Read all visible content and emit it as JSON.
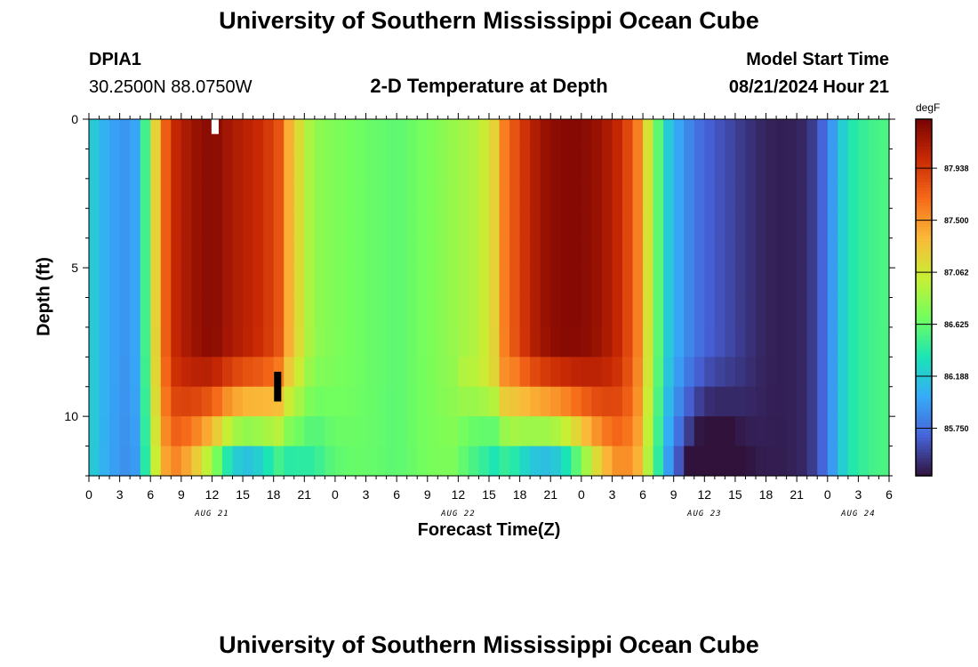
{
  "header": {
    "title": "University of Southern Mississippi Ocean Cube",
    "station": "DPIA1",
    "coords": "30.2500N  88.0750W",
    "subtitle": "2-D Temperature at Depth",
    "model_start_label": "Model Start Time",
    "model_start_value": "08/21/2024 Hour 21"
  },
  "footer": {
    "title": "University of Southern Mississippi Ocean Cube"
  },
  "colors": {
    "cmap": [
      "#30123b",
      "#4662d7",
      "#36aaf9",
      "#1ae4b6",
      "#72fe5e",
      "#c8ef34",
      "#faba39",
      "#f66b19",
      "#ca2a04",
      "#7a0403"
    ],
    "markers": {
      "white": "#ffffff",
      "black": "#000000"
    }
  },
  "chart_data": {
    "type": "heatmap",
    "title": "2-D Temperature at Depth",
    "xlabel": "Forecast Time(Z)",
    "ylabel": "Depth (ft)",
    "units": "degF",
    "x_hours": [
      0,
      78
    ],
    "y_depth_range": [
      0,
      12
    ],
    "y_ticks": [
      "0",
      "5",
      "10"
    ],
    "x_tick_labels": [
      "0",
      "3",
      "6",
      "9",
      "12",
      "15",
      "18",
      "21",
      "0",
      "3",
      "6",
      "9",
      "12",
      "15",
      "18",
      "21",
      "0",
      "3",
      "6",
      "9",
      "12",
      "15",
      "18",
      "21",
      "0",
      "3",
      "6"
    ],
    "date_labels": [
      {
        "text": "AUG 21",
        "hour": 12
      },
      {
        "text": "AUG 22",
        "hour": 36
      },
      {
        "text": "AUG 23",
        "hour": 60
      },
      {
        "text": "AUG 24",
        "hour": 75
      }
    ],
    "colorbar": {
      "label": "degF",
      "ticks": [
        "87.938",
        "87.500",
        "87.062",
        "86.625",
        "86.188",
        "85.750"
      ],
      "tick_values": [
        87.938,
        87.5,
        87.062,
        86.625,
        86.188,
        85.75
      ],
      "min": 85.35,
      "max": 88.35
    },
    "depth_levels": [
      0,
      1,
      2,
      3,
      4,
      5,
      6,
      7,
      8,
      9,
      10,
      11
    ],
    "markers": [
      {
        "color": "white",
        "hour": 12.3,
        "depth": 0.0,
        "depth_end": 0.5
      },
      {
        "color": "black",
        "hour": 18.4,
        "depth": 8.5,
        "depth_end": 9.5
      }
    ],
    "surface_profile": [
      {
        "h": 0,
        "v": 86.25
      },
      {
        "h": 2,
        "v": 86.0
      },
      {
        "h": 4,
        "v": 85.9
      },
      {
        "h": 5,
        "v": 86.1
      },
      {
        "h": 6,
        "v": 86.9
      },
      {
        "h": 7,
        "v": 87.5
      },
      {
        "h": 8,
        "v": 88.0
      },
      {
        "h": 10,
        "v": 88.2
      },
      {
        "h": 12,
        "v": 88.3
      },
      {
        "h": 14,
        "v": 88.15
      },
      {
        "h": 17,
        "v": 88.0
      },
      {
        "h": 18.5,
        "v": 87.8
      },
      {
        "h": 19.5,
        "v": 87.4
      },
      {
        "h": 21,
        "v": 87.0
      },
      {
        "h": 22,
        "v": 86.8
      },
      {
        "h": 25,
        "v": 86.7
      },
      {
        "h": 30,
        "v": 86.6
      },
      {
        "h": 34,
        "v": 86.75
      },
      {
        "h": 38,
        "v": 86.95
      },
      {
        "h": 39.5,
        "v": 87.2
      },
      {
        "h": 40.5,
        "v": 87.6
      },
      {
        "h": 42,
        "v": 87.9
      },
      {
        "h": 44,
        "v": 88.2
      },
      {
        "h": 46,
        "v": 88.3
      },
      {
        "h": 48,
        "v": 88.3
      },
      {
        "h": 50,
        "v": 88.2
      },
      {
        "h": 52,
        "v": 88.0
      },
      {
        "h": 53.5,
        "v": 87.6
      },
      {
        "h": 54.5,
        "v": 87.1
      },
      {
        "h": 55.5,
        "v": 86.6
      },
      {
        "h": 56.5,
        "v": 86.2
      },
      {
        "h": 58,
        "v": 85.9
      },
      {
        "h": 60,
        "v": 85.7
      },
      {
        "h": 62,
        "v": 85.6
      },
      {
        "h": 64,
        "v": 85.5
      },
      {
        "h": 66,
        "v": 85.42
      },
      {
        "h": 68,
        "v": 85.4
      },
      {
        "h": 70,
        "v": 85.45
      },
      {
        "h": 71,
        "v": 85.6
      },
      {
        "h": 72,
        "v": 85.8
      },
      {
        "h": 73,
        "v": 86.1
      },
      {
        "h": 74,
        "v": 86.35
      },
      {
        "h": 76,
        "v": 86.5
      },
      {
        "h": 78,
        "v": 86.55
      }
    ],
    "warm_bands": [
      {
        "center": 15,
        "width": 5.5,
        "amp": 2.3
      },
      {
        "center": 45,
        "width": 5.5,
        "amp": 2.5
      },
      {
        "center": 60,
        "width": 3.5,
        "amp": 0.7
      }
    ],
    "hour_start": 0,
    "hour_end": 78,
    "depth_start": 0,
    "depth_end": 12
  }
}
